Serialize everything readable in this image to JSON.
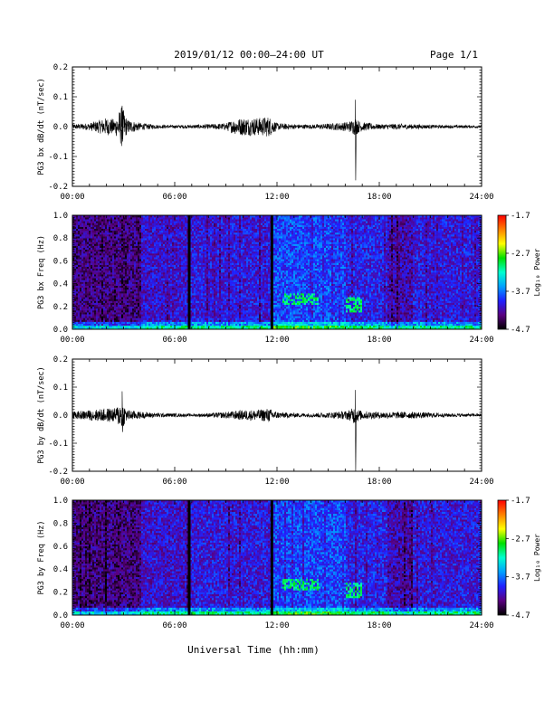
{
  "header": {
    "title": "2019/01/12  00:00–24:00 UT",
    "page_label": "Page 1/1"
  },
  "footer": {
    "xlabel": "Universal Time (hh:mm)"
  },
  "chart_data": [
    {
      "type": "line",
      "id": "bx_dbdt",
      "ylabel": "PG3 bx dB/dt (nT/sec)",
      "xlim": [
        "00:00",
        "24:00"
      ],
      "ylim": [
        -0.2,
        0.2
      ],
      "x_ticks": [
        "00:00",
        "06:00",
        "12:00",
        "18:00",
        "24:00"
      ],
      "y_ticks": [
        "-0.2",
        "-0.1",
        "0.0",
        "0.1",
        "0.2"
      ],
      "line_color": "#000000",
      "series_envelope": {
        "x_hours": [
          0,
          1,
          2,
          2.5,
          2.9,
          3.2,
          4,
          5,
          6,
          7,
          8,
          9,
          9.5,
          10,
          11,
          11.5,
          12,
          13,
          14,
          15,
          16,
          16.3,
          16.5,
          16.6,
          16.8,
          17,
          18,
          19,
          20,
          21,
          22,
          23,
          24
        ],
        "amplitude": [
          0.008,
          0.012,
          0.03,
          0.025,
          0.07,
          0.025,
          0.012,
          0.006,
          0.005,
          0.006,
          0.008,
          0.012,
          0.025,
          0.03,
          0.03,
          0.035,
          0.012,
          0.008,
          0.007,
          0.01,
          0.015,
          0.02,
          0.025,
          0.03,
          0.02,
          0.015,
          0.008,
          0.01,
          0.008,
          0.006,
          0.005,
          0.005,
          0.004
        ]
      },
      "notable_spikes": [
        {
          "time": "02:55",
          "min": -0.05,
          "max": 0.07
        },
        {
          "time": "16:35",
          "min": -0.18,
          "max": 0.09
        }
      ]
    },
    {
      "type": "heatmap",
      "id": "bx_spectrogram",
      "ylabel": "PG3 bx Freq (Hz)",
      "xlim": [
        "00:00",
        "24:00"
      ],
      "ylim": [
        0.0,
        1.0
      ],
      "x_ticks": [
        "00:00",
        "06:00",
        "12:00",
        "18:00",
        "24:00"
      ],
      "y_ticks": [
        "0.0",
        "0.2",
        "0.4",
        "0.6",
        "0.8",
        "1.0"
      ],
      "colorbar": {
        "label": "Log₁₀ Power",
        "ticks": [
          "-1.7",
          "-2.7",
          "-3.7",
          "-4.7"
        ],
        "range": [
          -4.7,
          -1.7
        ],
        "colors": [
          "#000000",
          "#5a0080",
          "#2020ff",
          "#00a0ff",
          "#00ffd0",
          "#00e000",
          "#ffff00",
          "#ff8000",
          "#ff0000"
        ]
      },
      "data_gaps_hours": [
        6.85,
        11.7
      ],
      "notable_features": [
        {
          "time_range_hours": [
            12.3,
            14.5
          ],
          "freq_range_hz": [
            0.22,
            0.32
          ],
          "level": -3.0
        },
        {
          "time_range_hours": [
            16.0,
            17.0
          ],
          "freq_range_hz": [
            0.15,
            0.28
          ],
          "level": -3.0
        }
      ]
    },
    {
      "type": "line",
      "id": "by_dbdt",
      "ylabel": "PG3 by dB/dt (nT/sec)",
      "xlim": [
        "00:00",
        "24:00"
      ],
      "ylim": [
        -0.2,
        0.2
      ],
      "x_ticks": [
        "00:00",
        "06:00",
        "12:00",
        "18:00",
        "24:00"
      ],
      "y_ticks": [
        "-0.2",
        "-0.1",
        "0.0",
        "0.1",
        "0.2"
      ],
      "line_color": "#000000",
      "series_envelope": {
        "x_hours": [
          0,
          1,
          2,
          2.5,
          2.9,
          3.2,
          4,
          5,
          6,
          7,
          8,
          9,
          9.5,
          10,
          11,
          11.5,
          12,
          13,
          14,
          15,
          16,
          16.3,
          16.5,
          16.6,
          16.8,
          17,
          18,
          19,
          20,
          21,
          22,
          23,
          24
        ],
        "amplitude": [
          0.012,
          0.018,
          0.025,
          0.025,
          0.05,
          0.02,
          0.012,
          0.008,
          0.006,
          0.005,
          0.007,
          0.012,
          0.015,
          0.018,
          0.02,
          0.025,
          0.012,
          0.008,
          0.007,
          0.01,
          0.015,
          0.02,
          0.03,
          0.03,
          0.02,
          0.015,
          0.012,
          0.012,
          0.012,
          0.009,
          0.007,
          0.006,
          0.005
        ]
      },
      "notable_spikes": [
        {
          "time": "02:55",
          "min": -0.06,
          "max": 0.085
        },
        {
          "time": "16:35",
          "min": -0.2,
          "max": 0.09
        }
      ]
    },
    {
      "type": "heatmap",
      "id": "by_spectrogram",
      "ylabel": "PG3 by Freq (Hz)",
      "xlim": [
        "00:00",
        "24:00"
      ],
      "ylim": [
        0.0,
        1.0
      ],
      "x_ticks": [
        "00:00",
        "06:00",
        "12:00",
        "18:00",
        "24:00"
      ],
      "y_ticks": [
        "0.0",
        "0.2",
        "0.4",
        "0.6",
        "0.8",
        "1.0"
      ],
      "colorbar": {
        "label": "Log₁₀ Power",
        "ticks": [
          "-1.7",
          "-2.7",
          "-3.7",
          "-4.7"
        ],
        "range": [
          -4.7,
          -1.7
        ],
        "colors": [
          "#000000",
          "#5a0080",
          "#2020ff",
          "#00a0ff",
          "#00ffd0",
          "#00e000",
          "#ffff00",
          "#ff8000",
          "#ff0000"
        ]
      },
      "data_gaps_hours": [
        6.85,
        11.7
      ],
      "notable_features": [
        {
          "time_range_hours": [
            12.3,
            14.5
          ],
          "freq_range_hz": [
            0.22,
            0.32
          ],
          "level": -3.0
        },
        {
          "time_range_hours": [
            16.0,
            17.0
          ],
          "freq_range_hz": [
            0.15,
            0.28
          ],
          "level": -3.0
        }
      ]
    }
  ]
}
